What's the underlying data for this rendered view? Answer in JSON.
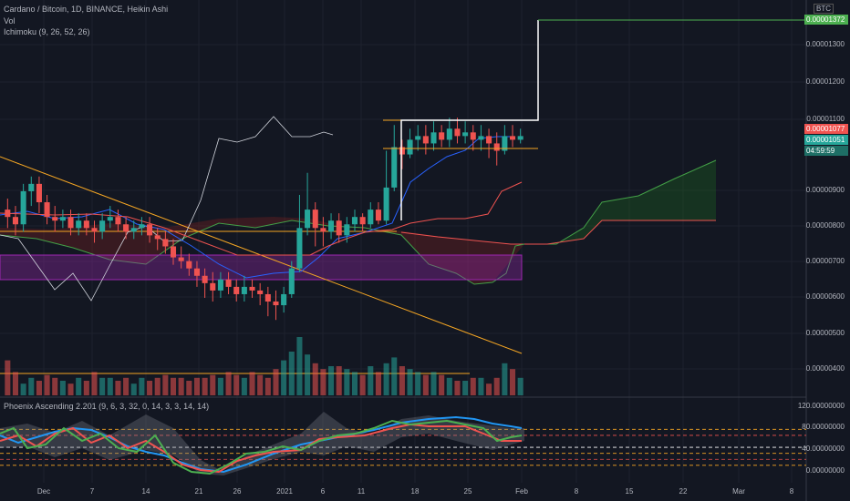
{
  "legend": {
    "symbol": "Cardano / Bitcoin, 1D, BINANCE, Heikin Ashi",
    "vol": "Vol",
    "ichimoku": "Ichimoku (9, 26, 52, 26)"
  },
  "oscillator_legend": "Phoenix Ascending 2.201 (9, 6, 3, 32, 0, 14, 3, 3, 14, 14)",
  "currency": "BTC",
  "price_axis": [
    "0.00001300",
    "0.00001200",
    "0.00001100",
    "0.00000900",
    "0.00000800",
    "0.00000700",
    "0.00000600",
    "0.00000500",
    "0.00000400"
  ],
  "price_tags": {
    "target": "0.00001372",
    "upper": "0.00001077",
    "last": "0.00001051",
    "countdown": "04:59:59"
  },
  "osc_axis": [
    "120.00000000",
    "80.00000000",
    "40.00000000",
    "0.00000000"
  ],
  "time_axis": [
    "Dec",
    "7",
    "14",
    "21",
    "26",
    "2021",
    "6",
    "11",
    "18",
    "25",
    "Feb",
    "8",
    "15",
    "22",
    "Mar",
    "8"
  ],
  "colors": {
    "background": "#131722",
    "bull": "#26a69a",
    "bear": "#ef5350",
    "trendline": "#f5a623",
    "target_line": "#4caf50",
    "projection": "#ffffff",
    "cloud_green": "#1b5e20",
    "cloud_red": "#7f2020",
    "purple_zone": "#9c27b0",
    "kijun": "#ef5350",
    "tenkan": "#2962ff"
  },
  "chart_data": {
    "type": "candlestick",
    "title": "Cardano / Bitcoin, 1D, BINANCE, Heikin Ashi",
    "x_labels": [
      "Dec",
      "7",
      "14",
      "21",
      "26",
      "2021",
      "6",
      "11",
      "18",
      "25",
      "Feb",
      "8",
      "15",
      "22",
      "Mar",
      "8"
    ],
    "y_range": [
      3.4e-06,
      1.42e-05
    ],
    "candles": [
      [
        8.5e-06,
        8.3e-06,
        8.8e-06,
        8e-06
      ],
      [
        8.3e-06,
        8.1e-06,
        8.6e-06,
        7.8e-06
      ],
      [
        8.1e-06,
        9e-06,
        9.2e-06,
        7.9e-06
      ],
      [
        9e-06,
        9.2e-06,
        9.4e-06,
        8.6e-06
      ],
      [
        9.2e-06,
        8.7e-06,
        9.4e-06,
        8.4e-06
      ],
      [
        8.7e-06,
        8.3e-06,
        8.9e-06,
        8.1e-06
      ],
      [
        8.3e-06,
        8.2e-06,
        8.6e-06,
        7.9e-06
      ],
      [
        8.2e-06,
        8.3e-06,
        8.5e-06,
        8e-06
      ],
      [
        8.3e-06,
        8e-06,
        8.5e-06,
        7.8e-06
      ],
      [
        8e-06,
        8.2e-06,
        8.4e-06,
        7.8e-06
      ],
      [
        8.2e-06,
        8e-06,
        8.4e-06,
        7.8e-06
      ],
      [
        8e-06,
        7.9e-06,
        8.2e-06,
        7.6e-06
      ],
      [
        7.9e-06,
        8.2e-06,
        8.4e-06,
        7.7e-06
      ],
      [
        8.2e-06,
        8.3e-06,
        8.6e-06,
        8e-06
      ],
      [
        8.3e-06,
        8.1e-06,
        8.5e-06,
        7.9e-06
      ],
      [
        8.1e-06,
        7.9e-06,
        8.3e-06,
        7.7e-06
      ],
      [
        7.9e-06,
        8e-06,
        8.2e-06,
        7.7e-06
      ],
      [
        8e-06,
        8.1e-06,
        8.3e-06,
        7.8e-06
      ],
      [
        8.1e-06,
        7.8e-06,
        8.3e-06,
        7.6e-06
      ],
      [
        7.8e-06,
        7.7e-06,
        8e-06,
        7.4e-06
      ],
      [
        7.7e-06,
        7.5e-06,
        7.9e-06,
        7.3e-06
      ],
      [
        7.5e-06,
        7.2e-06,
        7.7e-06,
        7e-06
      ],
      [
        7.2e-06,
        7.1e-06,
        7.5e-06,
        6.9e-06
      ],
      [
        7.1e-06,
        6.9e-06,
        7.3e-06,
        6.7e-06
      ],
      [
        6.9e-06,
        6.7e-06,
        7.1e-06,
        6.4e-06
      ],
      [
        6.7e-06,
        6.5e-06,
        6.9e-06,
        6.1e-06
      ],
      [
        6.5e-06,
        6.3e-06,
        6.8e-06,
        6e-06
      ],
      [
        6.3e-06,
        6.6e-06,
        6.8e-06,
        6.1e-06
      ],
      [
        6.6e-06,
        6.4e-06,
        6.8e-06,
        6.2e-06
      ],
      [
        6.4e-06,
        6.2e-06,
        6.6e-06,
        6e-06
      ],
      [
        6.2e-06,
        6.4e-06,
        6.7e-06,
        6e-06
      ],
      [
        6.4e-06,
        6.3e-06,
        6.6e-06,
        6.1e-06
      ],
      [
        6.3e-06,
        6.2e-06,
        6.5e-06,
        5.9e-06
      ],
      [
        6.2e-06,
        6e-06,
        6.4e-06,
        5.6e-06
      ],
      [
        6e-06,
        5.9e-06,
        6.3e-06,
        5.5e-06
      ],
      [
        5.9e-06,
        6.2e-06,
        6.4e-06,
        5.7e-06
      ],
      [
        6.2e-06,
        6.9e-06,
        7.1e-06,
        6.1e-06
      ],
      [
        6.9e-06,
        8e-06,
        8.9e-06,
        6.8e-06
      ],
      [
        8e-06,
        8.5e-06,
        9.5e-06,
        7.8e-06
      ],
      [
        8.5e-06,
        8e-06,
        8.7e-06,
        7.5e-06
      ],
      [
        8e-06,
        7.9e-06,
        8.3e-06,
        7.5e-06
      ],
      [
        7.9e-06,
        8.2e-06,
        8.4e-06,
        7.7e-06
      ],
      [
        8.2e-06,
        7.8e-06,
        8.4e-06,
        7.6e-06
      ],
      [
        7.8e-06,
        8.1e-06,
        8.3e-06,
        7.6e-06
      ],
      [
        8.1e-06,
        8.3e-06,
        8.5e-06,
        7.9e-06
      ],
      [
        8.3e-06,
        8.1e-06,
        8.4e-06,
        7.9e-06
      ],
      [
        8.1e-06,
        8.5e-06,
        8.7e-06,
        8e-06
      ],
      [
        8.5e-06,
        8.2e-06,
        8.7e-06,
        8.1e-06
      ],
      [
        8.2e-06,
        9.1e-06,
        1.01e-05,
        8.1e-06
      ],
      [
        9.1e-06,
        1.02e-05,
        1.08e-05,
        9e-06
      ],
      [
        1.02e-05,
        1e-05,
        1.04e-05,
        9.6e-06
      ],
      [
        1e-05,
        1.04e-05,
        1.07e-05,
        9.9e-06
      ],
      [
        1.04e-05,
        1.05e-05,
        1.08e-05,
        1.01e-05
      ],
      [
        1.05e-05,
        1.03e-05,
        1.08e-05,
        1e-05
      ],
      [
        1.03e-05,
        1.06e-05,
        1.09e-05,
        1.01e-05
      ],
      [
        1.06e-05,
        1.04e-05,
        1.08e-05,
        1.02e-05
      ],
      [
        1.04e-05,
        1.07e-05,
        1.1e-05,
        1.02e-05
      ],
      [
        1.07e-05,
        1.05e-05,
        1.1e-05,
        1.03e-05
      ],
      [
        1.05e-05,
        1.06e-05,
        1.09e-05,
        1.03e-05
      ],
      [
        1.06e-05,
        1.04e-05,
        1.08e-05,
        1.01e-05
      ],
      [
        1.04e-05,
        1.05e-05,
        1.08e-05,
        1.01e-05
      ],
      [
        1.05e-05,
        1.03e-05,
        1.07e-05,
        9.9e-06
      ],
      [
        1.03e-05,
        1.01e-05,
        1.06e-05,
        9.7e-06
      ],
      [
        1.01e-05,
        1.05e-05,
        1.08e-05,
        1e-05
      ],
      [
        1.05e-05,
        1.04e-05,
        1.08e-05,
        1.02e-05
      ],
      [
        1.04e-05,
        1.05e-05,
        1.07e-05,
        1.03e-05
      ]
    ],
    "volume": [
      0.6,
      0.4,
      0.2,
      0.3,
      0.25,
      0.35,
      0.3,
      0.25,
      0.2,
      0.3,
      0.25,
      0.4,
      0.3,
      0.3,
      0.25,
      0.3,
      0.2,
      0.3,
      0.25,
      0.3,
      0.35,
      0.3,
      0.3,
      0.25,
      0.3,
      0.3,
      0.35,
      0.3,
      0.4,
      0.35,
      0.3,
      0.4,
      0.35,
      0.3,
      0.45,
      0.6,
      0.75,
      1.0,
      0.7,
      0.55,
      0.45,
      0.5,
      0.5,
      0.45,
      0.4,
      0.35,
      0.5,
      0.4,
      0.55,
      0.65,
      0.5,
      0.45,
      0.4,
      0.35,
      0.4,
      0.35,
      0.3,
      0.25,
      0.25,
      0.3,
      0.3,
      0.2,
      0.3,
      0.55,
      0.45,
      0.3
    ],
    "levels": {
      "target": 1.372e-05,
      "range_high": 1.1e-05,
      "range_low": 1.01e-05,
      "purple_zone": [
        6.5e-06,
        7.1e-06
      ],
      "support": 7.8e-06
    },
    "oscillator": {
      "y_range": [
        0,
        120
      ],
      "levels": [
        80,
        50,
        40,
        20
      ]
    }
  }
}
